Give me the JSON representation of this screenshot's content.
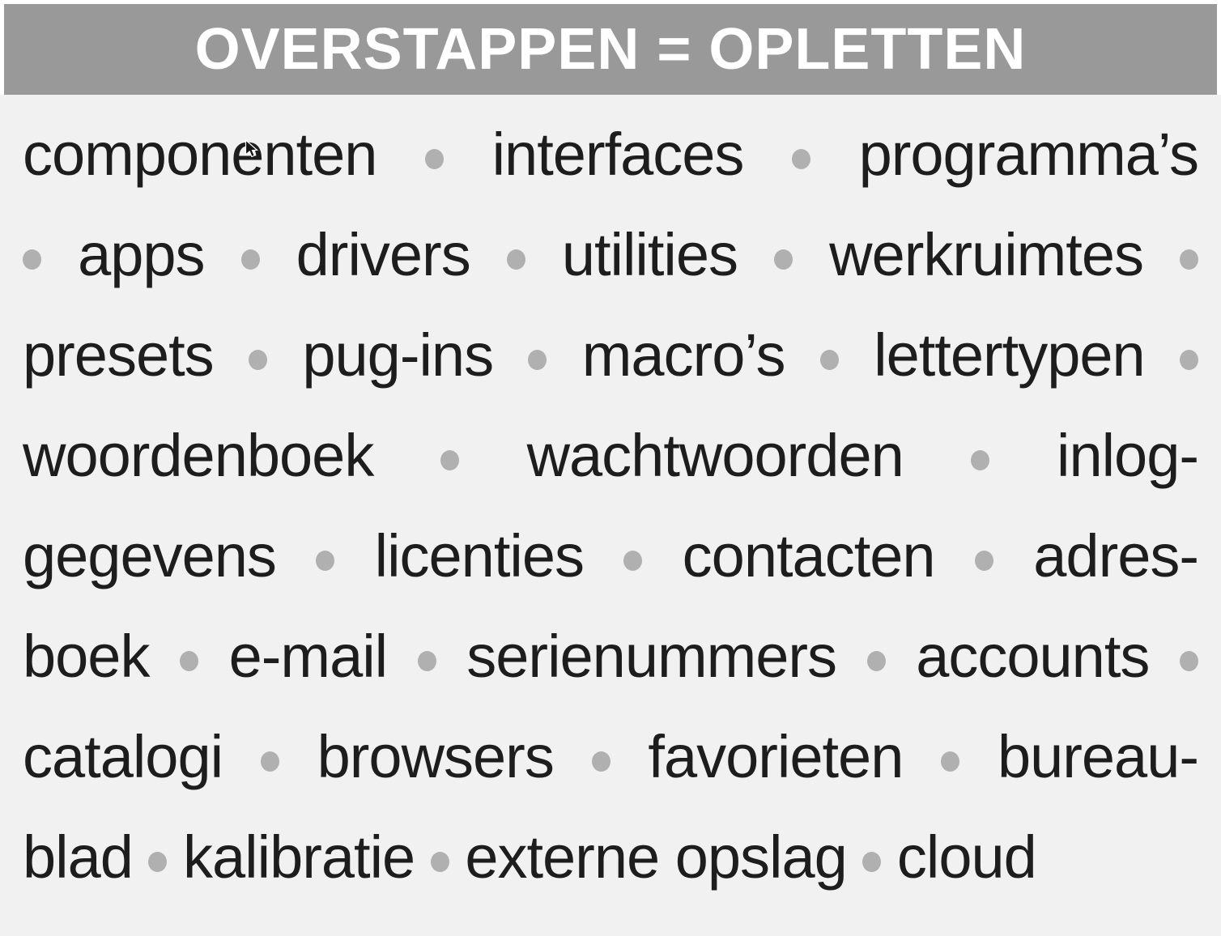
{
  "header": {
    "title": "OVERSTAPPEN = OPLETTEN"
  },
  "colors": {
    "header_bg": "#999999",
    "header_text": "#ffffff",
    "body_bg": "#f1f1f1",
    "text": "#1d1d1d",
    "bullet": "#b0b0b0",
    "page_border": "#ffffff"
  },
  "content": {
    "bullet_char": "•",
    "lines": [
      "componenten • interfaces • programma’s",
      "• apps • drivers • utilities • werkruimtes •",
      "presets • pug-ins • macro’s • lettertypen •",
      "woordenboek • wachtwoorden • inlog-",
      "gegevens • licenties • contacten • adres-",
      "boek • e-mail • serienummers • accounts •",
      "catalogi • browsers • favorieten • bureau-",
      "blad • kalibratie • externe opslag • cloud"
    ],
    "full_text": "componenten • interfaces • programma’s • apps • drivers • utilities • werkruimtes • presets • pug-ins • macro’s • lettertypen • woordenboek • wachtwoorden • inloggegevens • licenties • contacten • adresboek • e-mail • serienummers • accounts • catalogi • browsers • favorieten • bureaublad • kalibratie • externe opslag • cloud"
  },
  "cursor": {
    "icon": "arrow-pointer"
  }
}
